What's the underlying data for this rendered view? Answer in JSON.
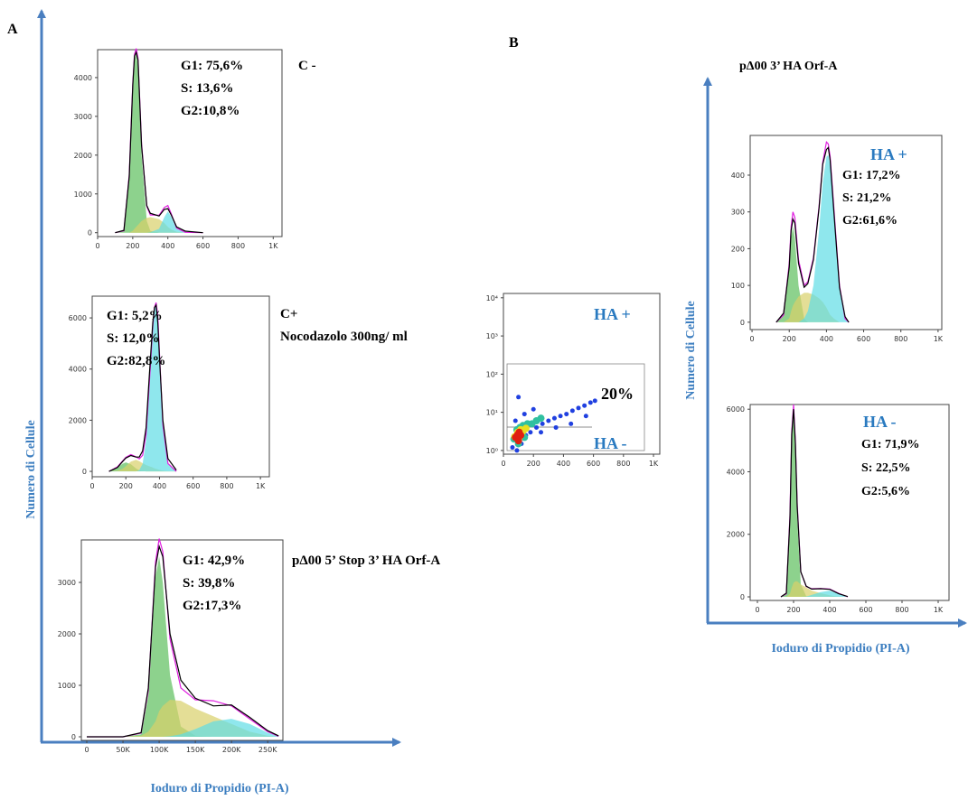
{
  "figure": {
    "panel_a": "A",
    "panel_b": "B",
    "title_b": "pΔ00 3’ HA Orf-A",
    "y_label_a": "Numero di Cellule",
    "x_label_a": "Ioduro di Propidio (PI-A)",
    "y_label_b": "Numero di Cellule",
    "x_label_b": "Ioduro di Propidio (PI-A)"
  },
  "chart_data": [
    {
      "type": "area",
      "labels": [
        "C -"
      ],
      "stats": [
        "G1: 75,6%",
        "S: 13,6%",
        "G2:10,8%"
      ],
      "xlim": [
        0,
        1050
      ],
      "ylim": [
        -100,
        4720
      ],
      "xticks": [
        0,
        200,
        400,
        600,
        800,
        {
          "value": 1000,
          "label": "1K"
        }
      ],
      "yticks": [
        0,
        1000,
        2000,
        3000,
        4000
      ],
      "x": [
        100,
        150,
        180,
        200,
        210,
        220,
        230,
        250,
        280,
        300,
        350,
        380,
        400,
        420,
        450,
        500,
        600
      ],
      "series": [
        {
          "kind": "area",
          "color": "#5cbf5c",
          "values": [
            0,
            50,
            1500,
            3800,
            4500,
            4600,
            4300,
            2000,
            300,
            50,
            0,
            0,
            0,
            0,
            0,
            0,
            0
          ]
        },
        {
          "kind": "area",
          "color": "#d8d06a",
          "values": [
            0,
            0,
            0,
            50,
            100,
            150,
            200,
            300,
            380,
            400,
            350,
            250,
            150,
            80,
            20,
            0,
            0
          ]
        },
        {
          "kind": "area",
          "color": "#5fdde6",
          "values": [
            0,
            0,
            0,
            0,
            0,
            0,
            0,
            0,
            0,
            10,
            100,
            400,
            550,
            400,
            100,
            0,
            0
          ]
        },
        {
          "kind": "line",
          "color": "#e020e0",
          "values": [
            0,
            50,
            1500,
            3850,
            4600,
            4750,
            4500,
            2300,
            680,
            460,
            450,
            650,
            700,
            480,
            120,
            10,
            0
          ]
        },
        {
          "kind": "line",
          "color": "#000000",
          "values": [
            0,
            60,
            1450,
            3800,
            4550,
            4650,
            4450,
            2250,
            700,
            500,
            430,
            600,
            620,
            450,
            150,
            40,
            0
          ]
        }
      ]
    },
    {
      "type": "area",
      "labels": [
        "C+",
        "Nocodazolo 300ng/ ml"
      ],
      "stats": [
        "G1: 5,2%",
        "S: 12,0%",
        "G2:82,8%"
      ],
      "xlim": [
        0,
        1053
      ],
      "ylim": [
        -210,
        6850
      ],
      "xticks": [
        0,
        200,
        400,
        600,
        800,
        {
          "value": 1000,
          "label": "1K"
        }
      ],
      "yticks": [
        0,
        2000,
        4000,
        6000
      ],
      "x": [
        100,
        150,
        180,
        200,
        230,
        260,
        280,
        300,
        320,
        340,
        360,
        370,
        380,
        390,
        400,
        420,
        450,
        500
      ],
      "series": [
        {
          "kind": "area",
          "color": "#5cbf5c",
          "values": [
            0,
            150,
            300,
            350,
            280,
            120,
            40,
            10,
            0,
            0,
            0,
            0,
            0,
            0,
            0,
            0,
            0,
            0
          ]
        },
        {
          "kind": "area",
          "color": "#d8d06a",
          "values": [
            0,
            30,
            100,
            200,
            380,
            450,
            400,
            320,
            250,
            200,
            150,
            120,
            100,
            80,
            60,
            30,
            10,
            0
          ]
        },
        {
          "kind": "area",
          "color": "#5fdde6",
          "values": [
            0,
            0,
            0,
            0,
            0,
            0,
            50,
            300,
            1200,
            3300,
            5500,
            6300,
            6500,
            6000,
            4500,
            1800,
            300,
            0
          ]
        },
        {
          "kind": "line",
          "color": "#e020e0",
          "values": [
            0,
            180,
            400,
            550,
            660,
            570,
            490,
            630,
            1450,
            3500,
            5650,
            6420,
            6600,
            6080,
            4560,
            1830,
            310,
            0
          ]
        },
        {
          "kind": "line",
          "color": "#000000",
          "values": [
            0,
            150,
            380,
            520,
            620,
            560,
            560,
            800,
            1700,
            3800,
            5800,
            6400,
            6500,
            5800,
            4400,
            2000,
            500,
            50
          ]
        }
      ]
    },
    {
      "type": "area",
      "labels": [
        "pΔ00 5’ Stop 3’ HA Orf-A"
      ],
      "stats": [
        "G1: 42,9%",
        "S: 39,8%",
        "G2:17,3%"
      ],
      "xlim": [
        -7500,
        271000
      ],
      "ylim": [
        -70,
        3825
      ],
      "xticks": [
        0,
        {
          "value": 50000,
          "label": "50K"
        },
        {
          "value": 100000,
          "label": "100K"
        },
        {
          "value": 150000,
          "label": "150K"
        },
        {
          "value": 200000,
          "label": "200K"
        },
        {
          "value": 250000,
          "label": "250K"
        }
      ],
      "yticks": [
        0,
        1000,
        2000,
        3000
      ],
      "x": [
        0,
        50000,
        75000,
        85000,
        95000,
        100000,
        105000,
        115000,
        130000,
        150000,
        175000,
        200000,
        225000,
        250000,
        265000
      ],
      "series": [
        {
          "kind": "area",
          "color": "#5cbf5c",
          "values": [
            0,
            0,
            50,
            800,
            3100,
            3500,
            3000,
            1200,
            200,
            20,
            0,
            0,
            0,
            0,
            0
          ]
        },
        {
          "kind": "area",
          "color": "#d8d06a",
          "values": [
            0,
            0,
            20,
            100,
            300,
            500,
            600,
            720,
            700,
            550,
            400,
            250,
            100,
            20,
            0
          ]
        },
        {
          "kind": "area",
          "color": "#5fdde6",
          "values": [
            0,
            0,
            0,
            0,
            0,
            0,
            0,
            10,
            50,
            150,
            300,
            350,
            250,
            80,
            10
          ]
        },
        {
          "kind": "line",
          "color": "#e020e0",
          "values": [
            0,
            0,
            70,
            900,
            3400,
            3850,
            3600,
            1900,
            950,
            720,
            700,
            600,
            350,
            100,
            10
          ]
        },
        {
          "kind": "line",
          "color": "#000000",
          "values": [
            0,
            0,
            80,
            950,
            3300,
            3700,
            3500,
            2000,
            1100,
            750,
            600,
            620,
            380,
            120,
            20
          ]
        }
      ]
    },
    {
      "type": "scatter",
      "ylog": true,
      "labels": [
        "HA +",
        "20%",
        "HA -"
      ],
      "xlim": [
        0,
        1042
      ],
      "ylim": [
        0.8,
        13000
      ],
      "xticks": [
        0,
        200,
        400,
        600,
        800,
        {
          "value": 1000,
          "label": "1K"
        }
      ],
      "yticks": [
        {
          "value": 1,
          "label": "10⁰"
        },
        {
          "value": 10,
          "label": "10¹"
        },
        {
          "value": 100,
          "label": "10²"
        },
        {
          "value": 1000,
          "label": "10³"
        },
        {
          "value": 10000,
          "label": "10⁴"
        }
      ],
      "series": [
        {
          "color": "#2040e0",
          "x": [
            60,
            90,
            120,
            150,
            180,
            220,
            260,
            300,
            340,
            380,
            420,
            460,
            500,
            540,
            580,
            610,
            80,
            140,
            200,
            250,
            350,
            450,
            550,
            100
          ],
          "values": [
            1.2,
            1.0,
            1.5,
            2.5,
            3,
            4,
            5,
            6,
            7,
            8,
            9,
            11,
            13,
            15,
            18,
            20,
            6,
            9,
            12,
            3,
            4,
            5,
            8,
            25
          ]
        },
        {
          "color": "#30c0a0",
          "x": [
            70,
            90,
            110,
            130,
            160,
            190,
            220,
            100,
            140,
            250
          ],
          "values": [
            2,
            3.5,
            4,
            4.5,
            5,
            5,
            6,
            1.5,
            2.2,
            7
          ]
        },
        {
          "color": "#e8e020",
          "x": [
            75,
            95,
            115,
            130,
            150,
            105
          ],
          "values": [
            2.3,
            3,
            3.5,
            3.2,
            3.8,
            2.2
          ]
        },
        {
          "color": "#e02010",
          "x": [
            80,
            95,
            105,
            115,
            100
          ],
          "values": [
            2.2,
            2.6,
            3,
            2.5,
            1.8
          ]
        }
      ]
    },
    {
      "type": "area",
      "labels": [
        "HA +"
      ],
      "stats": [
        "G1: 17,2%",
        "S: 21,2%",
        "G2:61,6%"
      ],
      "xlim": [
        -10,
        1020
      ],
      "ylim": [
        -20,
        508
      ],
      "xticks": [
        0,
        200,
        400,
        600,
        800,
        {
          "value": 1000,
          "label": "1K"
        }
      ],
      "yticks": [
        0,
        100,
        200,
        300,
        400
      ],
      "x": [
        130,
        170,
        200,
        210,
        220,
        230,
        250,
        280,
        300,
        330,
        360,
        380,
        400,
        410,
        420,
        440,
        470,
        500,
        520
      ],
      "series": [
        {
          "kind": "area",
          "color": "#5cbf5c",
          "values": [
            0,
            20,
            150,
            230,
            260,
            230,
            100,
            10,
            0,
            0,
            0,
            0,
            0,
            0,
            0,
            0,
            0,
            0,
            0
          ]
        },
        {
          "kind": "area",
          "color": "#d8d06a",
          "values": [
            0,
            0,
            10,
            30,
            45,
            55,
            70,
            80,
            80,
            75,
            65,
            55,
            40,
            30,
            20,
            10,
            0,
            0,
            0
          ]
        },
        {
          "kind": "area",
          "color": "#5fdde6",
          "values": [
            0,
            0,
            0,
            0,
            0,
            0,
            0,
            10,
            30,
            100,
            250,
            380,
            450,
            455,
            430,
            300,
            100,
            10,
            0
          ]
        },
        {
          "kind": "line",
          "color": "#e020e0",
          "values": [
            0,
            20,
            160,
            260,
            300,
            285,
            170,
            100,
            110,
            175,
            315,
            435,
            490,
            485,
            450,
            310,
            100,
            10,
            0
          ]
        },
        {
          "kind": "line",
          "color": "#000000",
          "values": [
            0,
            25,
            150,
            250,
            280,
            270,
            160,
            95,
            105,
            170,
            310,
            430,
            470,
            475,
            440,
            300,
            95,
            15,
            0
          ]
        }
      ]
    },
    {
      "type": "area",
      "labels": [
        "HA -"
      ],
      "stats": [
        "G1: 71,9%",
        "S: 22,5%",
        "G2:5,6%"
      ],
      "xlim": [
        -40,
        1060
      ],
      "ylim": [
        -115,
        6150
      ],
      "xticks": [
        0,
        200,
        400,
        600,
        800,
        {
          "value": 1000,
          "label": "1K"
        }
      ],
      "yticks": [
        0,
        2000,
        4000,
        6000
      ],
      "x": [
        130,
        160,
        180,
        190,
        200,
        210,
        220,
        240,
        270,
        300,
        350,
        400,
        450,
        500
      ],
      "series": [
        {
          "kind": "area",
          "color": "#5cbf5c",
          "values": [
            0,
            100,
            2500,
            5000,
            5800,
            4500,
            2500,
            400,
            20,
            0,
            0,
            0,
            0,
            0
          ]
        },
        {
          "kind": "area",
          "color": "#d8d06a",
          "values": [
            0,
            0,
            100,
            300,
            450,
            500,
            500,
            400,
            300,
            200,
            120,
            50,
            10,
            0
          ]
        },
        {
          "kind": "area",
          "color": "#5fdde6",
          "values": [
            0,
            0,
            0,
            0,
            0,
            0,
            0,
            0,
            10,
            60,
            150,
            200,
            100,
            0
          ]
        },
        {
          "kind": "line",
          "color": "#e020e0",
          "values": [
            0,
            100,
            2600,
            5300,
            6150,
            5000,
            3000,
            800,
            330,
            260,
            270,
            250,
            110,
            0
          ]
        },
        {
          "kind": "line",
          "color": "#000000",
          "values": [
            0,
            120,
            2500,
            5200,
            6000,
            4900,
            2900,
            800,
            340,
            250,
            260,
            240,
            100,
            10
          ]
        }
      ]
    }
  ]
}
